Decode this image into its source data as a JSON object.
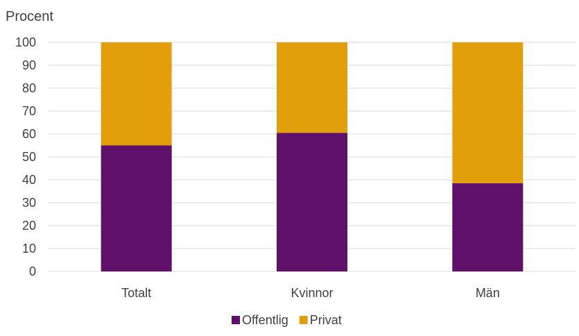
{
  "chart_data": {
    "type": "bar",
    "stacked": true,
    "ylabel": "Procent",
    "xlabel": "",
    "title": "",
    "ylim": [
      0,
      100
    ],
    "yticks": [
      0,
      10,
      20,
      30,
      40,
      50,
      60,
      70,
      80,
      90,
      100
    ],
    "categories": [
      "Totalt",
      "Kvinnor",
      "Män"
    ],
    "series": [
      {
        "name": "Offentlig",
        "color": "#5f1068",
        "values": [
          55,
          60.5,
          38.5
        ]
      },
      {
        "name": "Privat",
        "color": "#e29e0b",
        "values": [
          45,
          39.5,
          61.5
        ]
      }
    ],
    "grid": true,
    "legend_position": "bottom"
  }
}
